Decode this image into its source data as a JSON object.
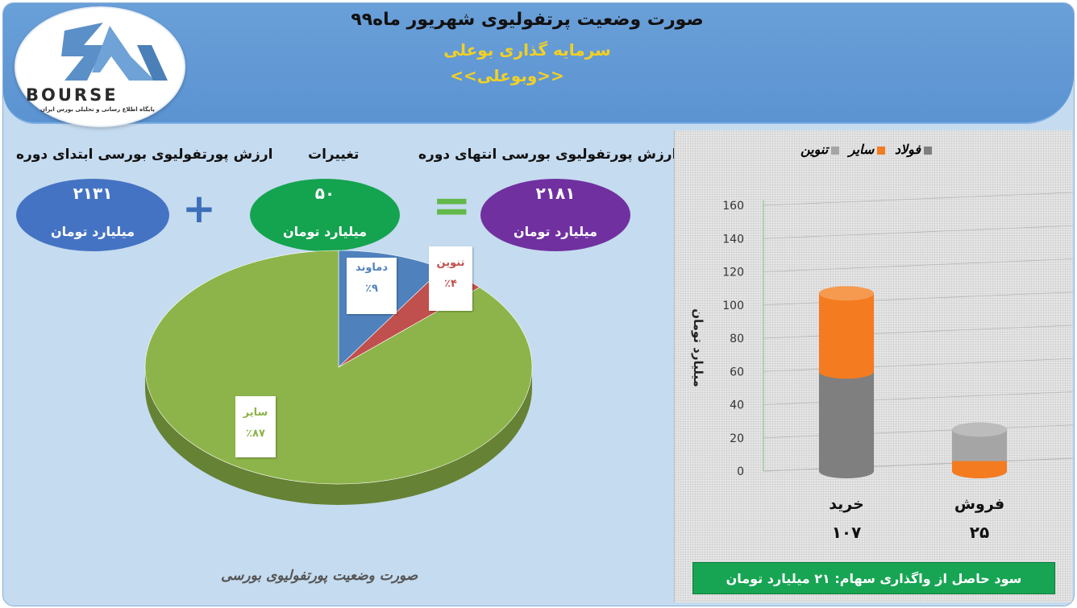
{
  "header": {
    "title": "صورت وضعیت پرتفولیوی شهریور ماه۹۹",
    "subtitle": "سرمایه گذاری بوعلی",
    "ticker": "<<وبوعلی>>"
  },
  "logo": {
    "wordmark": "BOURSE",
    "tagline": "پایگاه اطلاع رسانی و تحلیلی بورس ایران"
  },
  "summary": {
    "start_label": "ارزش پورتفولیوی بورسی ابتدای دوره",
    "change_label": "تغییرات",
    "end_label": "ارزش پورتفولیوی بورسی انتهای دوره",
    "start_value": "۲۱۳۱",
    "change_value": "۵۰",
    "end_value": "۲۱۸۱",
    "unit": "میلیارد تومان",
    "plus_symbol": "+",
    "equals_symbol": "="
  },
  "colors": {
    "start_oval": "#4573c4",
    "change_oval": "#14a34f",
    "end_oval": "#7030a0",
    "pie_other": "#8db44a",
    "pie_damavand": "#4f81bd",
    "pie_tenvin": "#c0504d",
    "bar_folad": "#7f7f7f",
    "bar_sayer": "#f47b20",
    "bar_tenvin": "#a5a5a5"
  },
  "chart_data": [
    {
      "type": "pie",
      "title": "صورت وضعیت پورتفولیوی بورسی",
      "slices": [
        {
          "name": "سایر",
          "value": 87,
          "label": "٪۸۷"
        },
        {
          "name": "دماوند",
          "value": 9,
          "label": "٪۹"
        },
        {
          "name": "تنوین",
          "value": 4,
          "label": "٪۴"
        }
      ]
    },
    {
      "type": "bar",
      "stacked": true,
      "ylabel": "میلیارد تومان",
      "ylim": [
        0,
        160
      ],
      "yticks": [
        "0",
        "20",
        "40",
        "60",
        "80",
        "100",
        "120",
        "140",
        "160"
      ],
      "categories": [
        "خرید",
        "فروش"
      ],
      "category_totals": [
        "۱۰۷",
        "۲۵"
      ],
      "legend": [
        "فولاد",
        "سایر",
        "تنوین"
      ],
      "legend_position": "top",
      "series": [
        {
          "name": "فولاد",
          "values": [
            60,
            0
          ]
        },
        {
          "name": "تنوین",
          "values": [
            0,
            25
          ]
        },
        {
          "name": "سایر",
          "values": [
            47,
            0
          ]
        }
      ]
    }
  ],
  "profit_note": "سود حاصل از واگذاری سهام: ۲۱ میلیارد تومان"
}
